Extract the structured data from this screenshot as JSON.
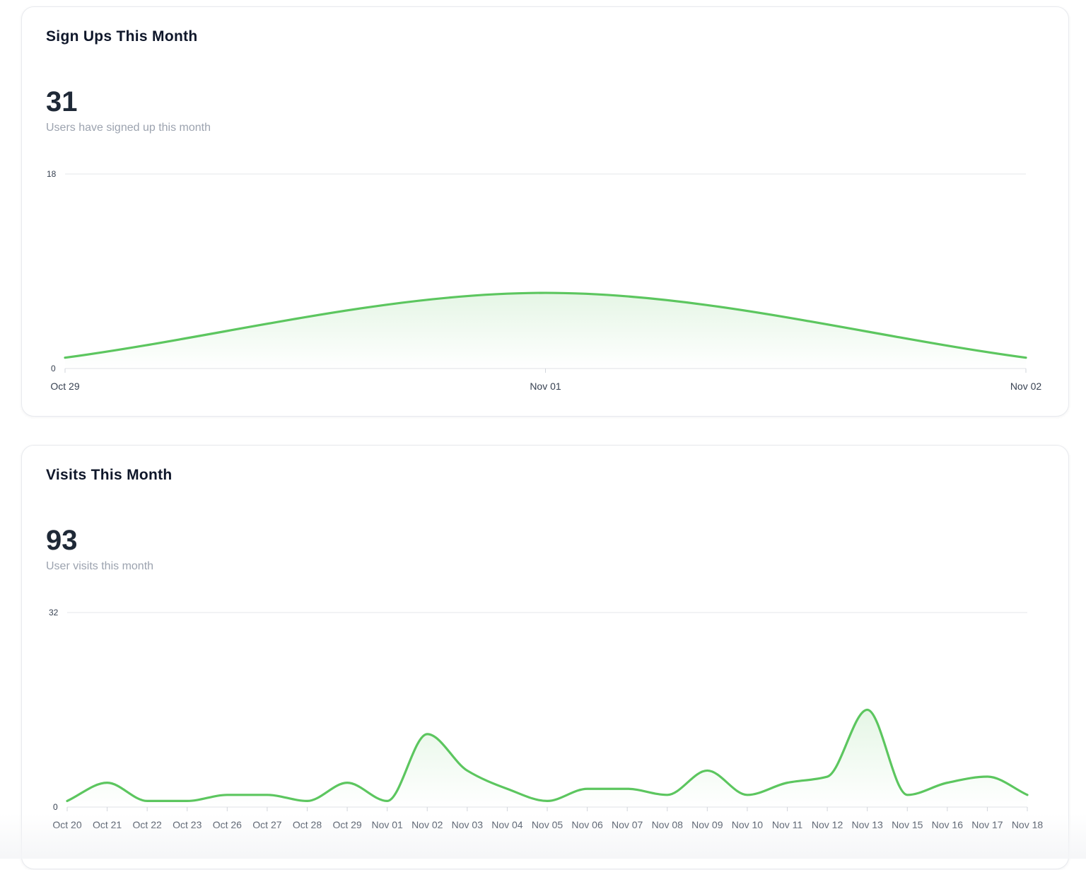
{
  "signups": {
    "title": "Sign Ups This Month",
    "value": "31",
    "caption": "Users have signed up this month"
  },
  "visits": {
    "title": "Visits This Month",
    "value": "93",
    "caption": "User visits this month"
  },
  "colors": {
    "line": "#5cc65f",
    "grid": "#e5e7eb",
    "title": "#0f172a",
    "caption": "#9ca3af"
  },
  "chart_data": [
    {
      "type": "area",
      "title": "",
      "xlabel": "",
      "ylabel": "",
      "ylim": [
        0,
        18
      ],
      "yticks": [
        "0",
        "18"
      ],
      "grid": true,
      "categories": [
        "Oct 29",
        "Nov 01",
        "Nov 02"
      ],
      "series": [
        {
          "values": [
            1,
            7,
            1
          ]
        }
      ]
    },
    {
      "type": "area",
      "title": "",
      "xlabel": "",
      "ylabel": "",
      "ylim": [
        0,
        32
      ],
      "yticks": [
        "0",
        "32"
      ],
      "grid": true,
      "categories": [
        "Oct 20",
        "Oct 21",
        "Oct 22",
        "Oct 23",
        "Oct 26",
        "Oct 27",
        "Oct 28",
        "Oct 29",
        "Nov 01",
        "Nov 02",
        "Nov 03",
        "Nov 04",
        "Nov 05",
        "Nov 06",
        "Nov 07",
        "Nov 08",
        "Nov 09",
        "Nov 10",
        "Nov 11",
        "Nov 12",
        "Nov 13",
        "Nov 15",
        "Nov 16",
        "Nov 17",
        "Nov 18"
      ],
      "series": [
        {
          "values": [
            1,
            4,
            1,
            1,
            2,
            2,
            1,
            4,
            1,
            12,
            6,
            3,
            1,
            3,
            3,
            2,
            6,
            2,
            4,
            5,
            16,
            2,
            4,
            5,
            2
          ]
        }
      ]
    }
  ]
}
